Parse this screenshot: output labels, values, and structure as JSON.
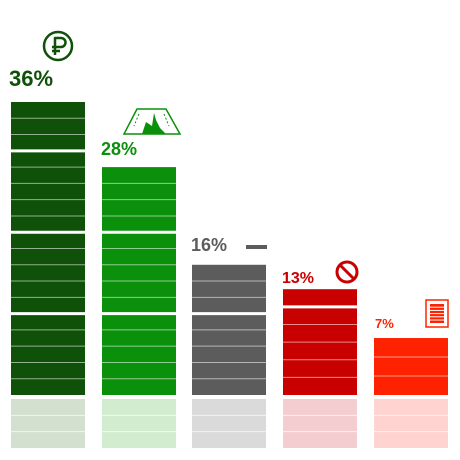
{
  "chart_data": {
    "type": "bar",
    "ylim": [
      0,
      36
    ],
    "grid": false,
    "legend": "none",
    "categories": [
      "",
      "",
      "",
      "",
      ""
    ],
    "values": [
      36,
      28,
      16,
      13,
      7
    ],
    "labels": [
      "36%",
      "28%",
      "16%",
      "13%",
      "7%"
    ],
    "icons": [
      "ruble-circle-icon",
      "road-icon",
      "minus-icon",
      "prohibited-icon",
      "document-icon"
    ],
    "colors": [
      "#0f5108",
      "#0a900a",
      "#5c5c5c",
      "#c80000",
      "#ff2200"
    ],
    "reflection_colors": [
      "#d3e0cf",
      "#d2ecd0",
      "#dadada",
      "#f4cdd0",
      "#ffd3d0"
    ]
  }
}
